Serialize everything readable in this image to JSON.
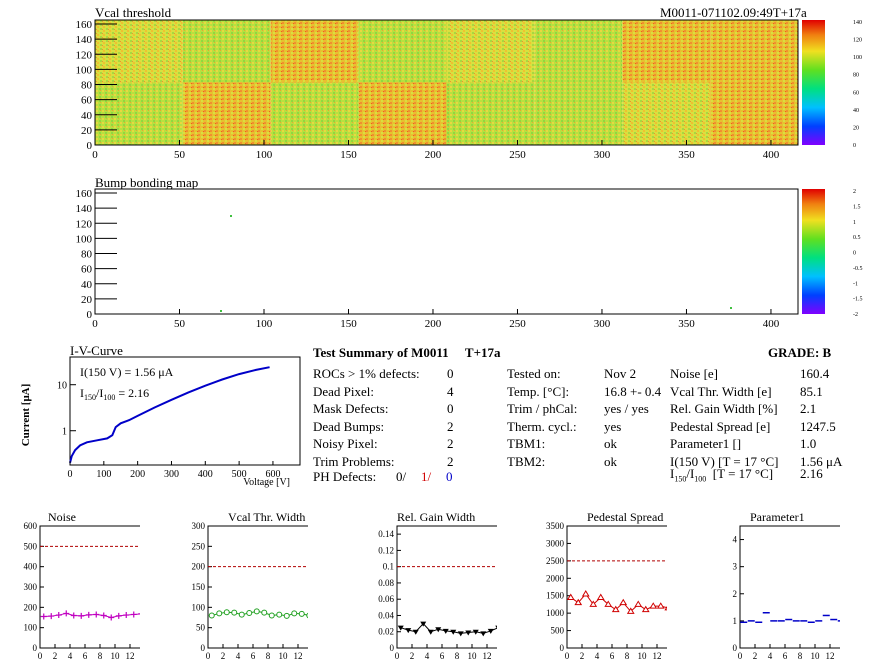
{
  "vcal_map": {
    "title": "Vcal threshold",
    "module_label": "M0011-071102.09:49T+17a",
    "x_ticks": [
      0,
      50,
      100,
      150,
      200,
      250,
      300,
      350,
      400
    ],
    "y_ticks": [
      0,
      20,
      40,
      60,
      80,
      100,
      120,
      140,
      160
    ],
    "z_ticks": [
      0,
      20,
      40,
      60,
      80,
      100,
      120,
      140
    ]
  },
  "bump_map": {
    "title": "Bump bonding map",
    "x_ticks": [
      0,
      50,
      100,
      150,
      200,
      250,
      300,
      350,
      400
    ],
    "y_ticks": [
      0,
      20,
      40,
      60,
      80,
      100,
      120,
      140,
      160
    ],
    "z_ticks": [
      "-2",
      "-1.5",
      "-1",
      "-0.5",
      "0",
      "0.5",
      "1",
      "1.5",
      "2"
    ]
  },
  "iv_curve": {
    "title": "I-V-Curve",
    "ylabel": "Current [μA]",
    "xlabel": "Voltage [V]",
    "x_ticks": [
      0,
      100,
      200,
      300,
      400,
      500,
      600
    ],
    "y_ticks": [
      "1",
      "10"
    ],
    "annot_i150": "I(150 V) = 1.56 μA",
    "annot_ratio_pre": "I",
    "annot_ratio_sub1": "150",
    "annot_ratio_mid": "/I",
    "annot_ratio_sub2": "100",
    "annot_ratio_val": "= 2.16"
  },
  "summary": {
    "title": "Test Summary of M0011",
    "tag": "T+17a",
    "grade": "GRADE:  B",
    "col1": [
      {
        "label": "ROCs > 1% defects:",
        "value": "0"
      },
      {
        "label": "Dead Pixel:",
        "value": "4"
      },
      {
        "label": "Mask Defects:",
        "value": "0"
      },
      {
        "label": "Dead Bumps:",
        "value": "2"
      },
      {
        "label": "Noisy Pixel:",
        "value": "2"
      },
      {
        "label": "Trim Problems:",
        "value": "2"
      }
    ],
    "ph_label": "PH Defects:",
    "ph_values": [
      "0/",
      "1/",
      "0"
    ],
    "col2": [
      {
        "label": "Tested on:",
        "value": "Nov 2"
      },
      {
        "label": "Temp. [°C]:",
        "value": "16.8 +- 0.4"
      },
      {
        "label": "Trim / phCal:",
        "value": "yes / yes"
      },
      {
        "label": "Therm. cycl.:",
        "value": "yes"
      },
      {
        "label": "TBM1:",
        "value": "ok"
      },
      {
        "label": "TBM2:",
        "value": "ok"
      }
    ],
    "col3": [
      {
        "label": "Noise [e]",
        "value": "160.4"
      },
      {
        "label": "Vcal Thr. Width [e]",
        "value": "85.1"
      },
      {
        "label": "Rel. Gain Width [%]",
        "value": "2.1"
      },
      {
        "label": "Pedestal Spread [e]",
        "value": "1247.5"
      },
      {
        "label": "Parameter1 []",
        "value": "1.0"
      },
      {
        "label": "I(150 V) [T = 17 °C]",
        "value": "1.56 μA"
      }
    ],
    "ratio_label_a": "I",
    "ratio_sub_a": "150",
    "ratio_label_b": "/I",
    "ratio_sub_b": "100",
    "ratio_label_c": "  [T = 17 °C]",
    "ratio_value": "2.16"
  },
  "chart_data": [
    {
      "type": "scatter",
      "title": "Noise",
      "color": "#c000c0",
      "x": [
        0,
        1,
        2,
        3,
        4,
        5,
        6,
        7,
        8,
        9,
        10,
        11,
        12,
        13,
        14,
        15
      ],
      "values": [
        155,
        157,
        162,
        170,
        160,
        158,
        163,
        165,
        160,
        150,
        158,
        162,
        165,
        168,
        170,
        155
      ],
      "ylim": [
        0,
        600
      ],
      "y_ticks": [
        0,
        100,
        200,
        300,
        400,
        500,
        600
      ],
      "ref_line": 500,
      "marker": "cross"
    },
    {
      "type": "scatter",
      "title": "Vcal Thr. Width",
      "color": "#20a020",
      "x": [
        0,
        1,
        2,
        3,
        4,
        5,
        6,
        7,
        8,
        9,
        10,
        11,
        12,
        13,
        14,
        15
      ],
      "values": [
        80,
        85,
        88,
        87,
        82,
        86,
        90,
        87,
        80,
        82,
        79,
        85,
        84,
        80,
        80,
        92
      ],
      "ylim": [
        0,
        300
      ],
      "y_ticks": [
        0,
        50,
        100,
        150,
        200,
        250,
        300
      ],
      "ref_line": 200,
      "marker": "circle"
    },
    {
      "type": "scatter",
      "title": "Rel. Gain Width",
      "color": "#000000",
      "x": [
        0,
        1,
        2,
        3,
        4,
        5,
        6,
        7,
        8,
        9,
        10,
        11,
        12,
        13,
        14,
        15
      ],
      "values": [
        0.025,
        0.022,
        0.02,
        0.03,
        0.02,
        0.023,
        0.021,
        0.02,
        0.018,
        0.019,
        0.02,
        0.018,
        0.021,
        0.025,
        0.022,
        0.022
      ],
      "ylim": [
        0,
        0.15
      ],
      "y_ticks": [
        0,
        0.02,
        0.04,
        0.06,
        0.08,
        0.1,
        0.12,
        0.14
      ],
      "ref_line": 0.1,
      "marker": "triangle-down"
    },
    {
      "type": "scatter",
      "title": "Pedestal Spread",
      "color": "#d00000",
      "x": [
        0,
        1,
        2,
        3,
        4,
        5,
        6,
        7,
        8,
        9,
        10,
        11,
        12,
        13,
        14,
        15
      ],
      "values": [
        1450,
        1300,
        1550,
        1250,
        1450,
        1250,
        1100,
        1300,
        1050,
        1250,
        1100,
        1200,
        1200,
        1150,
        1100,
        1250
      ],
      "ylim": [
        0,
        3500
      ],
      "y_ticks": [
        0,
        500,
        1000,
        1500,
        2000,
        2500,
        3000,
        3500
      ],
      "ref_line": 2500,
      "marker": "triangle-up"
    },
    {
      "type": "scatter",
      "title": "Parameter1",
      "color": "#0000c8",
      "x": [
        0,
        1,
        2,
        3,
        4,
        5,
        6,
        7,
        8,
        9,
        10,
        11,
        12,
        13,
        14,
        15
      ],
      "values": [
        0.95,
        1.0,
        0.95,
        1.3,
        1.0,
        1.0,
        1.05,
        1.0,
        1.0,
        0.95,
        1.0,
        1.2,
        1.05,
        1.0,
        1.0,
        1.0
      ],
      "ylim": [
        0,
        4.5
      ],
      "y_ticks": [
        0,
        1,
        2,
        3,
        4
      ],
      "ref_line": null,
      "marker": "dash"
    }
  ]
}
